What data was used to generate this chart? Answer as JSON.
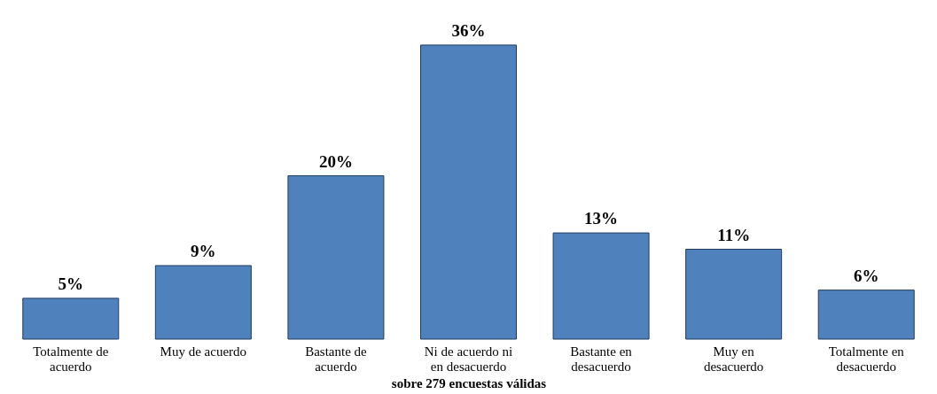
{
  "chart_data": {
    "type": "bar",
    "categories": [
      "Totalmente de acuerdo",
      "Muy de acuerdo",
      "Bastante de acuerdo",
      "Ni de acuerdo ni en desacuerdo",
      "Bastante en desacuerdo",
      "Muy en desacuerdo",
      "Totalmente en desacuerdo"
    ],
    "values": [
      5,
      9,
      20,
      36,
      13,
      11,
      6
    ],
    "value_labels": [
      "5%",
      "9%",
      "20%",
      "36%",
      "13%",
      "11%",
      "6%"
    ],
    "color": "#4f81bd",
    "xlabel": "sobre 279 encuestas válidas",
    "grid": false
  }
}
